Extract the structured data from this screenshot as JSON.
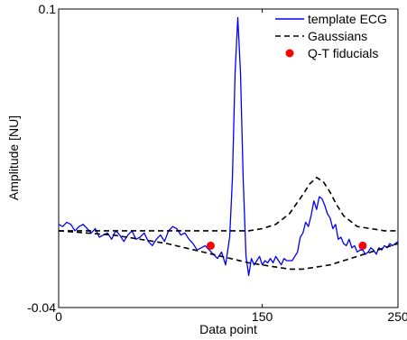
{
  "chart_data": {
    "type": "line",
    "title": "",
    "xlabel": "Data point",
    "ylabel": "Amplitude [NU]",
    "xlim": [
      0,
      250
    ],
    "ylim": [
      -0.04,
      0.1
    ],
    "x_ticks": [
      0,
      150,
      250
    ],
    "x_tick_labels": [
      "0",
      "150",
      "250"
    ],
    "y_ticks": [
      -0.04,
      0.1
    ],
    "y_tick_labels": [
      "-0.04",
      "0.1"
    ],
    "grid": false,
    "legend_position": "top-right",
    "series": [
      {
        "name": "template ECG",
        "style": "solid",
        "color": "#0000ff",
        "x": [
          0,
          3,
          6,
          9,
          12,
          15,
          18,
          21,
          24,
          27,
          30,
          33,
          36,
          39,
          42,
          45,
          48,
          51,
          54,
          57,
          60,
          63,
          66,
          69,
          72,
          75,
          78,
          81,
          84,
          87,
          90,
          93,
          96,
          99,
          102,
          105,
          108,
          111,
          114,
          117,
          120,
          123,
          126,
          128,
          130,
          132,
          134,
          136,
          138,
          140,
          142,
          144,
          146,
          148,
          150,
          152,
          154,
          156,
          158,
          160,
          162,
          164,
          166,
          168,
          170,
          172,
          174,
          176,
          178,
          180,
          182,
          184,
          186,
          188,
          190,
          192,
          194,
          196,
          198,
          200,
          202,
          204,
          206,
          208,
          210,
          212,
          214,
          216,
          218,
          220,
          222,
          224,
          226,
          228,
          230,
          232,
          234,
          236,
          238,
          240,
          242,
          244,
          246,
          248,
          250
        ],
        "y": [
          -0.001,
          -0.002,
          0.0,
          -0.001,
          -0.004,
          -0.002,
          -0.001,
          -0.003,
          -0.005,
          -0.003,
          -0.007,
          -0.006,
          -0.005,
          -0.008,
          -0.004,
          -0.006,
          -0.009,
          -0.006,
          -0.004,
          -0.008,
          -0.007,
          -0.005,
          -0.009,
          -0.011,
          -0.008,
          -0.006,
          -0.009,
          -0.004,
          -0.002,
          -0.003,
          -0.006,
          -0.005,
          -0.008,
          -0.01,
          -0.013,
          -0.012,
          -0.011,
          -0.013,
          -0.015,
          -0.017,
          -0.014,
          -0.02,
          -0.007,
          0.02,
          0.07,
          0.096,
          0.07,
          0.02,
          -0.016,
          -0.025,
          -0.017,
          -0.02,
          -0.018,
          -0.016,
          -0.02,
          -0.018,
          -0.019,
          -0.017,
          -0.019,
          -0.016,
          -0.018,
          -0.02,
          -0.017,
          -0.018,
          -0.018,
          -0.018,
          -0.016,
          -0.014,
          -0.007,
          -0.005,
          0.0,
          -0.002,
          0.003,
          0.01,
          0.006,
          0.012,
          0.011,
          0.008,
          0.004,
          0.002,
          -0.003,
          -0.001,
          -0.008,
          -0.007,
          -0.01,
          -0.011,
          -0.008,
          -0.012,
          -0.011,
          -0.014,
          -0.013,
          -0.013,
          -0.015,
          -0.014,
          -0.012,
          -0.013,
          -0.015,
          -0.012,
          -0.013,
          -0.011,
          -0.012,
          -0.01,
          -0.011,
          -0.01,
          -0.009
        ]
      },
      {
        "name": "Gaussians",
        "style": "dashed",
        "color": "#000000",
        "x": [
          0,
          10,
          20,
          30,
          40,
          50,
          60,
          70,
          80,
          90,
          100,
          110,
          120,
          130,
          140,
          150,
          160,
          170,
          180,
          185,
          190,
          195,
          200,
          205,
          210,
          220,
          230,
          240,
          250
        ],
        "y": [
          -0.004,
          -0.004,
          -0.004,
          -0.004,
          -0.004,
          -0.004,
          -0.004,
          -0.004,
          -0.004,
          -0.004,
          -0.004,
          -0.004,
          -0.004,
          -0.004,
          -0.004,
          -0.003,
          -0.001,
          0.004,
          0.013,
          0.018,
          0.021,
          0.019,
          0.014,
          0.008,
          0.003,
          -0.002,
          -0.003,
          -0.004,
          -0.004
        ]
      },
      {
        "name": "Gaussians",
        "style": "dashed",
        "color": "#000000",
        "show_in_legend": false,
        "x": [
          0,
          20,
          40,
          60,
          80,
          100,
          120,
          140,
          160,
          170,
          180,
          190,
          200,
          210,
          220,
          230,
          240,
          250
        ],
        "y": [
          -0.004,
          -0.005,
          -0.006,
          -0.008,
          -0.01,
          -0.013,
          -0.016,
          -0.019,
          -0.021,
          -0.022,
          -0.022,
          -0.021,
          -0.02,
          -0.018,
          -0.016,
          -0.014,
          -0.012,
          -0.01
        ]
      },
      {
        "name": "Q-T fiducials",
        "style": "markers",
        "color": "#ff0000",
        "x": [
          112,
          224
        ],
        "y": [
          -0.011,
          -0.011
        ]
      }
    ]
  }
}
